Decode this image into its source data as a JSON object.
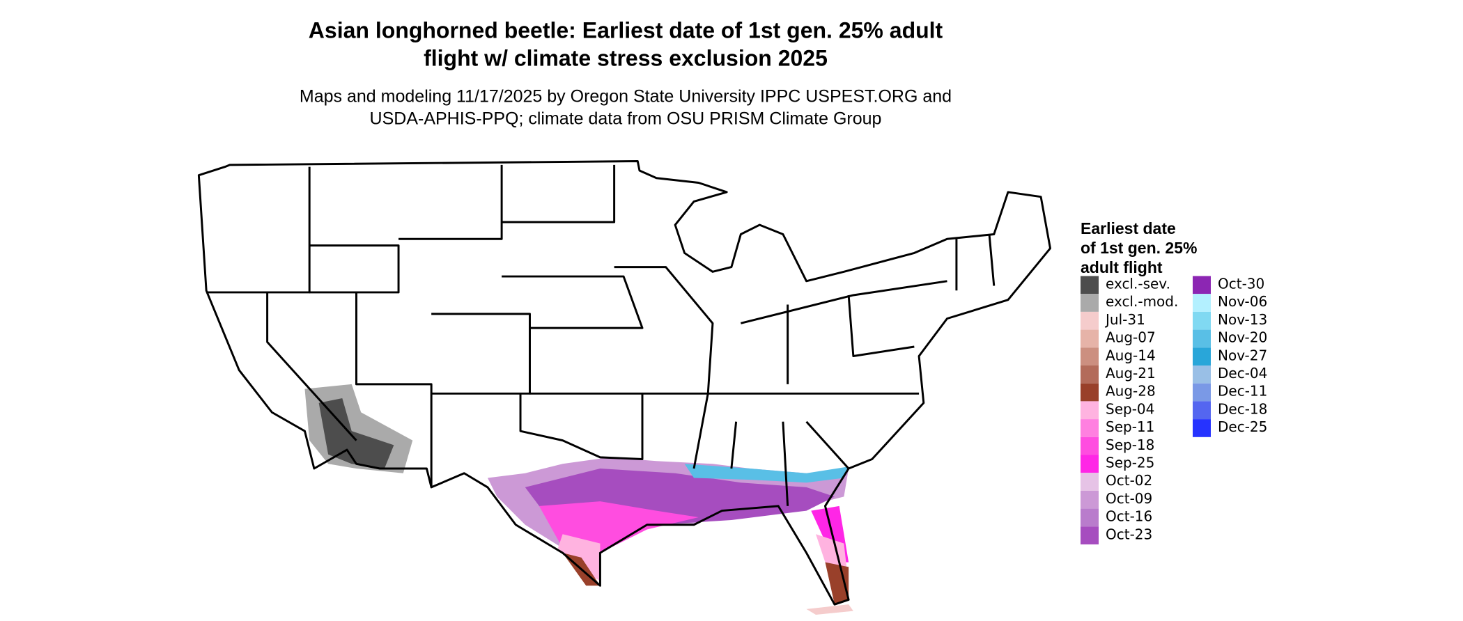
{
  "title": [
    "Asian longhorned beetle: Earliest date of 1st gen. 25% adult",
    "flight w/ climate stress exclusion 2025"
  ],
  "subtitle": [
    "Maps and modeling 11/17/2025 by Oregon State University IPPC USPEST.ORG and",
    "USDA-APHIS-PPQ; climate data from OSU PRISM Climate Group"
  ],
  "legend": {
    "title": [
      "Earliest date",
      "of 1st gen. 25%",
      "adult flight"
    ],
    "items": [
      {
        "label": "excl.-sev.",
        "color": "#4d4d4d"
      },
      {
        "label": "excl.-mod.",
        "color": "#aaaaaa"
      },
      {
        "label": "Jul-31",
        "color": "#f5cccc"
      },
      {
        "label": "Aug-07",
        "color": "#e6b3a8"
      },
      {
        "label": "Aug-14",
        "color": "#cc8f80"
      },
      {
        "label": "Aug-21",
        "color": "#b36b5a"
      },
      {
        "label": "Aug-28",
        "color": "#99402a"
      },
      {
        "label": "Sep-04",
        "color": "#ffb3e0"
      },
      {
        "label": "Sep-11",
        "color": "#ff80e0"
      },
      {
        "label": "Sep-18",
        "color": "#ff4de0"
      },
      {
        "label": "Sep-25",
        "color": "#ff26e6"
      },
      {
        "label": "Oct-02",
        "color": "#e6c3e6"
      },
      {
        "label": "Oct-09",
        "color": "#cc99d6"
      },
      {
        "label": "Oct-16",
        "color": "#b97ccc"
      },
      {
        "label": "Oct-23",
        "color": "#a64dbf"
      },
      {
        "label": "Oct-30",
        "color": "#8c26b3"
      },
      {
        "label": "Nov-06",
        "color": "#b3f0ff"
      },
      {
        "label": "Nov-13",
        "color": "#80d9f2"
      },
      {
        "label": "Nov-20",
        "color": "#59bfe6"
      },
      {
        "label": "Nov-27",
        "color": "#29a6d9"
      },
      {
        "label": "Dec-04",
        "color": "#99bfe6"
      },
      {
        "label": "Dec-11",
        "color": "#7a99e6"
      },
      {
        "label": "Dec-18",
        "color": "#5466f0"
      },
      {
        "label": "Dec-25",
        "color": "#2633ff"
      }
    ]
  }
}
